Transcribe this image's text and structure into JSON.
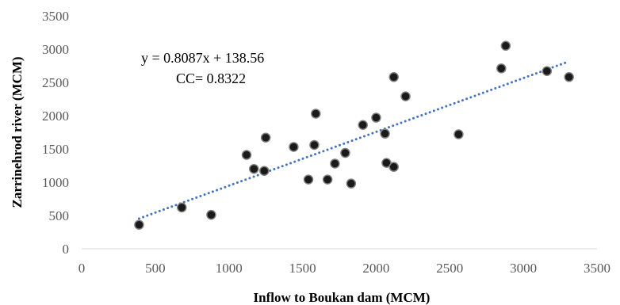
{
  "chart_data": {
    "type": "scatter",
    "xlabel": "Inflow to Boukan dam (MCM)",
    "ylabel": "Zarrinehrod river (MCM)",
    "xlim": [
      0,
      3500
    ],
    "ylim": [
      0,
      3500
    ],
    "xticks": [
      "0",
      "500",
      "1000",
      "1500",
      "2000",
      "2500",
      "3000",
      "3500"
    ],
    "yticks": [
      "0",
      "500",
      "1000",
      "1500",
      "2000",
      "2500",
      "3000",
      "3500"
    ],
    "grid": false,
    "legend": "none",
    "equation_label": "y = 0.8087x + 138.56",
    "cc_label": "CC= 0.8322",
    "trendline": {
      "slope": 0.8087,
      "intercept": 138.56,
      "x_range": [
        390,
        3310
      ],
      "style": "dotted",
      "color": "#4472c4"
    },
    "marker_color": "#1a1a1a",
    "marker_edge_color": "#7f7f7f",
    "points": [
      {
        "x": 390,
        "y": 360
      },
      {
        "x": 680,
        "y": 620
      },
      {
        "x": 880,
        "y": 510
      },
      {
        "x": 1120,
        "y": 1410
      },
      {
        "x": 1170,
        "y": 1200
      },
      {
        "x": 1240,
        "y": 1170
      },
      {
        "x": 1250,
        "y": 1670
      },
      {
        "x": 1440,
        "y": 1530
      },
      {
        "x": 1540,
        "y": 1040
      },
      {
        "x": 1580,
        "y": 1560
      },
      {
        "x": 1590,
        "y": 2030
      },
      {
        "x": 1670,
        "y": 1040
      },
      {
        "x": 1720,
        "y": 1280
      },
      {
        "x": 1790,
        "y": 1440
      },
      {
        "x": 1830,
        "y": 980
      },
      {
        "x": 1910,
        "y": 1860
      },
      {
        "x": 2000,
        "y": 1970
      },
      {
        "x": 2060,
        "y": 1730
      },
      {
        "x": 2070,
        "y": 1290
      },
      {
        "x": 2120,
        "y": 2580
      },
      {
        "x": 2120,
        "y": 1230
      },
      {
        "x": 2200,
        "y": 2290
      },
      {
        "x": 2560,
        "y": 1720
      },
      {
        "x": 2850,
        "y": 2710
      },
      {
        "x": 2880,
        "y": 3050
      },
      {
        "x": 3160,
        "y": 2670
      },
      {
        "x": 3310,
        "y": 2580
      }
    ]
  }
}
